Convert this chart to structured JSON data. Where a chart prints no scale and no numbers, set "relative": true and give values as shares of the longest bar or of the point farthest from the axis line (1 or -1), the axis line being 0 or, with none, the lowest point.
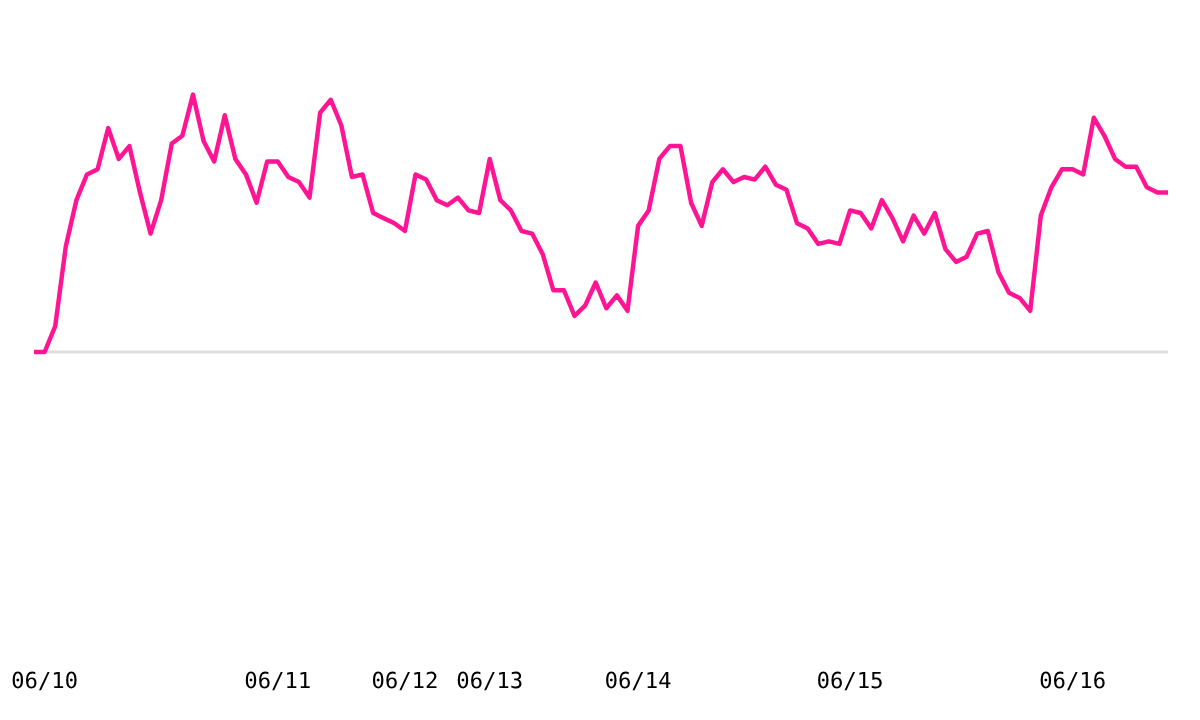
{
  "chart_data": {
    "type": "line",
    "relative": true,
    "grid": false,
    "legend": false,
    "marker": "none",
    "line_style": "solid",
    "categories": [
      null,
      "06/10",
      null,
      null,
      null,
      null,
      null,
      null,
      null,
      null,
      null,
      null,
      null,
      null,
      null,
      null,
      null,
      null,
      null,
      null,
      null,
      null,
      null,
      "06/11",
      null,
      null,
      null,
      null,
      null,
      null,
      null,
      null,
      null,
      null,
      null,
      "06/12",
      null,
      null,
      null,
      null,
      null,
      null,
      null,
      "06/13",
      null,
      null,
      null,
      null,
      null,
      null,
      null,
      null,
      null,
      null,
      null,
      null,
      null,
      "06/14",
      null,
      null,
      null,
      null,
      null,
      null,
      null,
      null,
      null,
      null,
      null,
      null,
      null,
      null,
      null,
      null,
      null,
      null,
      null,
      "06/15",
      null,
      null,
      null,
      null,
      null,
      null,
      null,
      null,
      null,
      null,
      null,
      null,
      null,
      null,
      null,
      null,
      null,
      null,
      null,
      null,
      "06/16",
      null,
      null,
      null,
      null,
      null,
      null,
      null,
      null,
      null
    ],
    "series": [
      {
        "color": "#ff1493",
        "values": [
          0,
          0,
          0.1,
          0.41,
          0.59,
          0.69,
          0.71,
          0.87,
          0.75,
          0.8,
          0.62,
          0.46,
          0.59,
          0.81,
          0.84,
          1.0,
          0.82,
          0.74,
          0.92,
          0.75,
          0.69,
          0.58,
          0.74,
          0.74,
          0.68,
          0.66,
          0.6,
          0.93,
          0.98,
          0.88,
          0.68,
          0.69,
          0.54,
          0.52,
          0.5,
          0.47,
          0.69,
          0.67,
          0.59,
          0.57,
          0.6,
          0.55,
          0.54,
          0.75,
          0.59,
          0.55,
          0.47,
          0.46,
          0.38,
          0.24,
          0.24,
          0.14,
          0.18,
          0.27,
          0.17,
          0.22,
          0.16,
          0.49,
          0.55,
          0.75,
          0.8,
          0.8,
          0.58,
          0.49,
          0.66,
          0.71,
          0.66,
          0.68,
          0.67,
          0.72,
          0.65,
          0.63,
          0.5,
          0.48,
          0.42,
          0.43,
          0.42,
          0.55,
          0.54,
          0.48,
          0.59,
          0.52,
          0.43,
          0.53,
          0.46,
          0.54,
          0.4,
          0.35,
          0.37,
          0.46,
          0.47,
          0.31,
          0.23,
          0.21,
          0.16,
          0.53,
          0.64,
          0.71,
          0.71,
          0.69,
          0.91,
          0.84,
          0.75,
          0.72,
          0.72,
          0.64,
          0.62,
          0.62
        ]
      }
    ]
  }
}
